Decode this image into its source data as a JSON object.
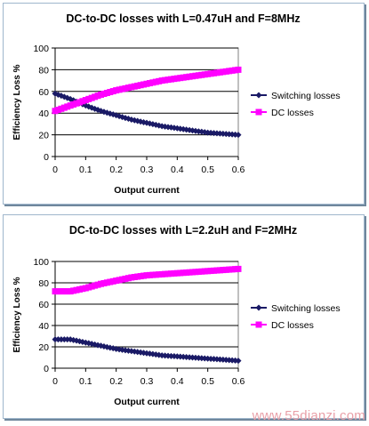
{
  "watermark": "www.55dianzi.com",
  "chart_data": [
    {
      "type": "line",
      "title": "DC-to-DC losses with L=0.47uH and F=8MHz",
      "xlabel": "Output current",
      "ylabel": "Efficiency Loss %",
      "xlim": [
        0,
        0.6
      ],
      "ylim": [
        0,
        100
      ],
      "xticks": [
        "0",
        "0.1",
        "0.2",
        "0.3",
        "0.4",
        "0.5",
        "0.6"
      ],
      "yticks": [
        "0",
        "20",
        "40",
        "60",
        "80",
        "100"
      ],
      "grid": "horizontal",
      "legend_position": "right",
      "x": [
        0,
        0.05,
        0.1,
        0.15,
        0.2,
        0.25,
        0.3,
        0.35,
        0.4,
        0.45,
        0.5,
        0.55,
        0.6
      ],
      "series": [
        {
          "name": "Switching losses",
          "color": "#1a1a66",
          "marker": "diamond",
          "values": [
            58,
            53,
            47,
            42,
            38,
            34,
            31,
            28,
            26,
            24,
            22,
            21,
            20
          ]
        },
        {
          "name": "DC losses",
          "color": "#ff00ff",
          "marker": "square",
          "values": [
            42,
            47,
            52,
            57,
            61,
            64,
            67,
            70,
            72,
            74,
            76,
            78,
            80
          ]
        }
      ]
    },
    {
      "type": "line",
      "title": "DC-to-DC losses with L=2.2uH and F=2MHz",
      "xlabel": "Output current",
      "ylabel": "Efficiency Loss %",
      "xlim": [
        0,
        0.6
      ],
      "ylim": [
        0,
        100
      ],
      "xticks": [
        "0",
        "0.1",
        "0.2",
        "0.3",
        "0.4",
        "0.5",
        "0.6"
      ],
      "yticks": [
        "0",
        "20",
        "40",
        "60",
        "80",
        "100"
      ],
      "grid": "horizontal",
      "legend_position": "right",
      "x": [
        0,
        0.05,
        0.1,
        0.15,
        0.2,
        0.25,
        0.3,
        0.35,
        0.4,
        0.45,
        0.5,
        0.55,
        0.6
      ],
      "series": [
        {
          "name": "Switching losses",
          "color": "#1a1a66",
          "marker": "diamond",
          "values": [
            27,
            27,
            24,
            21,
            18,
            16,
            14,
            12,
            11,
            10,
            9,
            8,
            7
          ]
        },
        {
          "name": "DC losses",
          "color": "#ff00ff",
          "marker": "square",
          "values": [
            72,
            72,
            75,
            79,
            82,
            85,
            87,
            88,
            89,
            90,
            91,
            92,
            93
          ]
        }
      ]
    }
  ]
}
